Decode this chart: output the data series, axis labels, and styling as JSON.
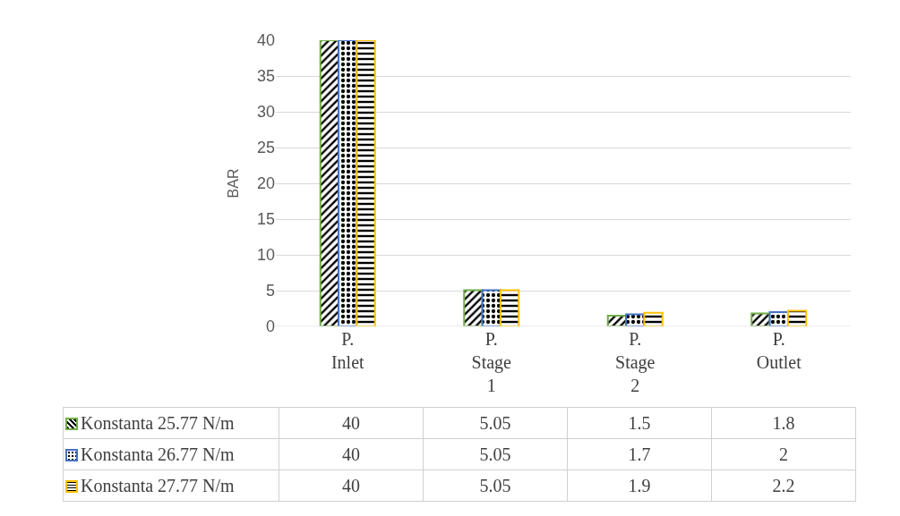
{
  "chart_data": {
    "type": "bar",
    "ylabel": "BAR",
    "categories": [
      "P. Inlet",
      "P. Stage 1",
      "P. Stage 2",
      "P. Outlet"
    ],
    "series": [
      {
        "name": "Konstanta 25.77 N/m",
        "color": "#70ad47",
        "values": [
          40,
          5.05,
          1.5,
          1.8
        ]
      },
      {
        "name": "Konstanta 26.77 N/m",
        "color": "#4472c4",
        "values": [
          40,
          5.05,
          1.7,
          2
        ]
      },
      {
        "name": "Konstanta 27.77 N/m",
        "color": "#ffc000",
        "values": [
          40,
          5.05,
          1.9,
          2.2
        ]
      }
    ],
    "ylim": [
      0,
      40
    ],
    "yticks": [
      0,
      5,
      10,
      15,
      20,
      25,
      30,
      35,
      40
    ],
    "grid": "y",
    "legend": "bottom",
    "data_labels": true
  }
}
